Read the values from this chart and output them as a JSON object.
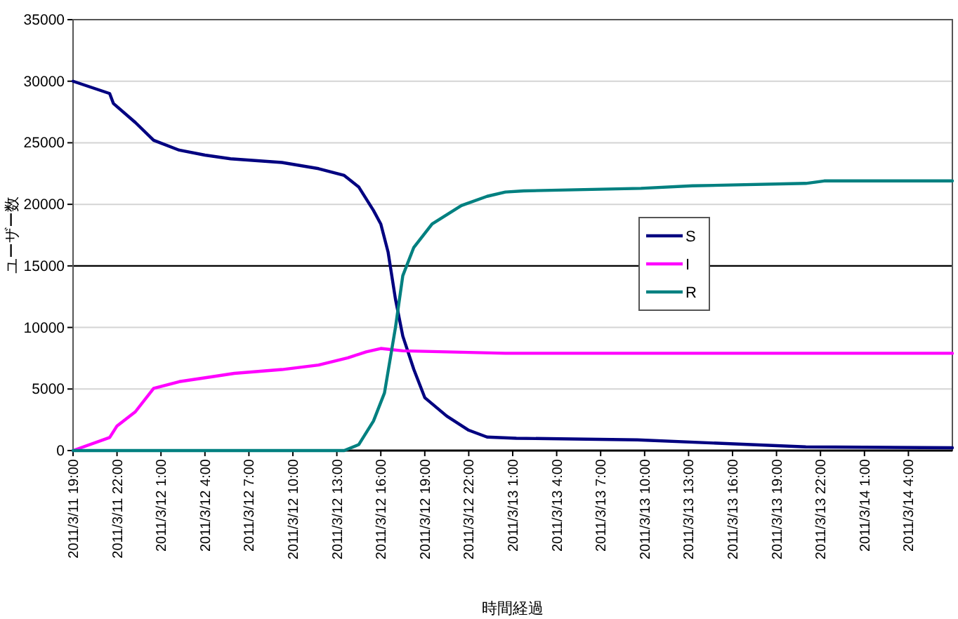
{
  "chart_data": {
    "type": "line",
    "xlabel": "時間経過",
    "ylabel": "ユーザー数",
    "xlim": [
      "2011-03-11T19:00",
      "2011-03-14T07:00"
    ],
    "xticks": [
      {
        "value": "2011-03-11T19:00",
        "label": "2011/3/11 19:00"
      },
      {
        "value": "2011-03-11T22:00",
        "label": "2011/3/11 22:00"
      },
      {
        "value": "2011-03-12T01:00",
        "label": "2011/3/12 1:00"
      },
      {
        "value": "2011-03-12T04:00",
        "label": "2011/3/12 4:00"
      },
      {
        "value": "2011-03-12T07:00",
        "label": "2011/3/12 7:00"
      },
      {
        "value": "2011-03-12T10:00",
        "label": "2011/3/12 10:00"
      },
      {
        "value": "2011-03-12T13:00",
        "label": "2011/3/12 13:00"
      },
      {
        "value": "2011-03-12T16:00",
        "label": "2011/3/12 16:00"
      },
      {
        "value": "2011-03-12T19:00",
        "label": "2011/3/12 19:00"
      },
      {
        "value": "2011-03-12T22:00",
        "label": "2011/3/12 22:00"
      },
      {
        "value": "2011-03-13T01:00",
        "label": "2011/3/13 1:00"
      },
      {
        "value": "2011-03-13T04:00",
        "label": "2011/3/13 4:00"
      },
      {
        "value": "2011-03-13T07:00",
        "label": "2011/3/13 7:00"
      },
      {
        "value": "2011-03-13T10:00",
        "label": "2011/3/13 10:00"
      },
      {
        "value": "2011-03-13T13:00",
        "label": "2011/3/13 13:00"
      },
      {
        "value": "2011-03-13T16:00",
        "label": "2011/3/13 16:00"
      },
      {
        "value": "2011-03-13T19:00",
        "label": "2011/3/13 19:00"
      },
      {
        "value": "2011-03-13T22:00",
        "label": "2011/3/13 22:00"
      },
      {
        "value": "2011-03-14T01:00",
        "label": "2011/3/14 1:00"
      },
      {
        "value": "2011-03-14T04:00",
        "label": "2011/3/14 4:00"
      }
    ],
    "ylim": [
      0,
      35000
    ],
    "yticks": [
      0,
      5000,
      10000,
      15000,
      20000,
      25000,
      30000,
      35000
    ],
    "grid": "y",
    "legend": "right",
    "marker": "none",
    "line_style": "solid",
    "ref_lines": [
      {
        "axis": "y",
        "value": 15000,
        "label": null,
        "color": "#000000"
      }
    ],
    "series": [
      {
        "name": "S",
        "color": "#000080",
        "x": [
          "2011-03-11T19:00",
          "2011-03-11T21:30",
          "2011-03-11T21:45",
          "2011-03-11T23:15",
          "2011-03-12T00:30",
          "2011-03-12T02:15",
          "2011-03-12T04:00",
          "2011-03-12T05:45",
          "2011-03-12T09:15",
          "2011-03-12T11:45",
          "2011-03-12T13:30",
          "2011-03-12T14:30",
          "2011-03-12T15:30",
          "2011-03-12T16:00",
          "2011-03-12T16:30",
          "2011-03-12T17:00",
          "2011-03-12T17:30",
          "2011-03-12T18:15",
          "2011-03-12T19:00",
          "2011-03-12T20:30",
          "2011-03-12T22:00",
          "2011-03-12T23:15",
          "2011-03-13T01:15",
          "2011-03-13T09:30",
          "2011-03-13T21:00",
          "2011-03-14T07:00"
        ],
        "values": [
          30000,
          29000,
          28200,
          26650,
          25200,
          24400,
          24000,
          23700,
          23400,
          22900,
          22350,
          21400,
          19500,
          18400,
          16100,
          12300,
          9300,
          6600,
          4300,
          2800,
          1650,
          1100,
          1000,
          870,
          300,
          230
        ]
      },
      {
        "name": "I",
        "color": "#ff00ff",
        "x": [
          "2011-03-11T19:00",
          "2011-03-11T21:30",
          "2011-03-11T22:00",
          "2011-03-11T23:15",
          "2011-03-12T00:30",
          "2011-03-12T02:15",
          "2011-03-12T04:30",
          "2011-03-12T06:00",
          "2011-03-12T09:15",
          "2011-03-12T11:45",
          "2011-03-12T13:45",
          "2011-03-12T15:00",
          "2011-03-12T16:00",
          "2011-03-12T17:30",
          "2011-03-13T00:30",
          "2011-03-14T07:00"
        ],
        "values": [
          0,
          1060,
          2000,
          3150,
          5050,
          5600,
          6000,
          6270,
          6580,
          6950,
          7530,
          8020,
          8290,
          8100,
          7900,
          7900
        ]
      },
      {
        "name": "R",
        "color": "#008080",
        "x": [
          "2011-03-11T19:00",
          "2011-03-12T13:30",
          "2011-03-12T14:30",
          "2011-03-12T15:30",
          "2011-03-12T16:15",
          "2011-03-12T17:00",
          "2011-03-12T17:30",
          "2011-03-12T18:15",
          "2011-03-12T19:30",
          "2011-03-12T21:30",
          "2011-03-12T23:15",
          "2011-03-13T00:30",
          "2011-03-13T01:45",
          "2011-03-13T09:45",
          "2011-03-13T13:15",
          "2011-03-13T21:00",
          "2011-03-13T22:15",
          "2011-03-14T07:00"
        ],
        "values": [
          0,
          0,
          490,
          2400,
          4680,
          10000,
          14200,
          16500,
          18400,
          19900,
          20650,
          21000,
          21090,
          21300,
          21500,
          21700,
          21900,
          21900
        ]
      }
    ]
  }
}
